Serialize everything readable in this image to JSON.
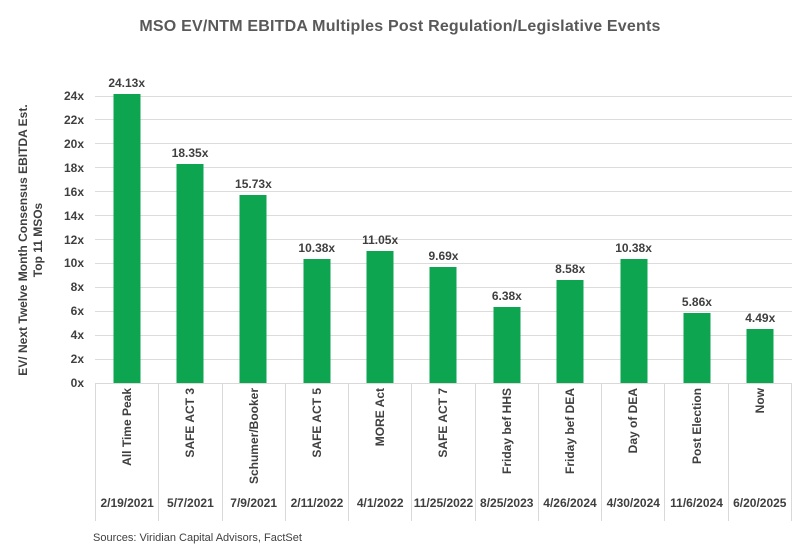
{
  "title": "MSO EV/NTM EBITDA Multiples Post Regulation/Legislative Events",
  "y_axis": {
    "line1": "EV/ Next Twelve Month Consensus EBITDA Est.",
    "line2": "Top 11 MSOs"
  },
  "source_note": "Sources: Viridian Capital Advisors, FactSet",
  "colors": {
    "bar": "#0ea551",
    "grid": "#dcdcdc",
    "title_text": "#595959",
    "label_text": "#3f3f3f"
  },
  "chart_data": {
    "type": "bar",
    "title": "MSO EV/NTM EBITDA Multiples Post Regulation/Legislative Events",
    "categories": [
      "All Time Peak",
      "SAFE ACT 3",
      "Schumer/Booker",
      "SAFE ACT 5",
      "MORE Act",
      "SAFE ACT 7",
      "Friday bef HHS",
      "Friday bef DEA",
      "Day of DEA",
      "Post Election",
      "Now"
    ],
    "x_dates": [
      "2/19/2021",
      "5/7/2021",
      "7/9/2021",
      "2/11/2022",
      "4/1/2022",
      "11/25/2022",
      "8/25/2023",
      "4/26/2024",
      "4/30/2024",
      "11/6/2024",
      "6/20/2025"
    ],
    "values": [
      24.13,
      18.35,
      15.73,
      10.38,
      11.05,
      9.69,
      6.38,
      8.58,
      10.38,
      5.86,
      4.49
    ],
    "bar_labels": [
      "24.13x",
      "18.35x",
      "15.73x",
      "10.38x",
      "11.05x",
      "9.69x",
      "6.38x",
      "8.58x",
      "10.38x",
      "5.86x",
      "4.49x"
    ],
    "xlabel": "",
    "ylabel": "EV/ Next Twelve Month Consensus EBITDA Est. Top 11 MSOs",
    "ylim": [
      0,
      24
    ],
    "ytick_step": 2,
    "ytick_labels": [
      "0x",
      "2x",
      "4x",
      "6x",
      "8x",
      "10x",
      "12x",
      "14x",
      "16x",
      "18x",
      "20x",
      "22x",
      "24x"
    ],
    "grid": true,
    "legend": false,
    "bar_color": "#0ea551"
  }
}
